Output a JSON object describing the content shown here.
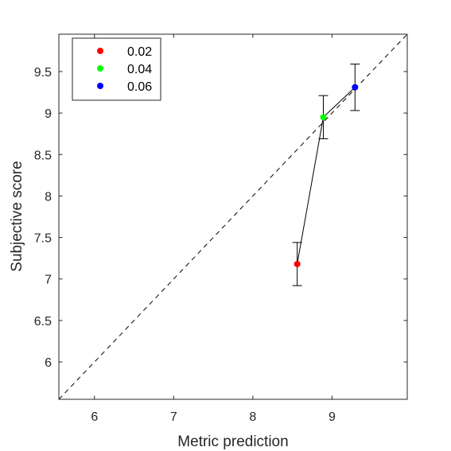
{
  "chart_data": {
    "type": "scatter",
    "xlabel": "Metric prediction",
    "ylabel": "Subjective score",
    "xlim": [
      5.55,
      9.95
    ],
    "ylim": [
      5.55,
      9.95
    ],
    "xticks": [
      "6",
      "7",
      "8",
      "9"
    ],
    "yticks": [
      "6",
      "6.5",
      "7",
      "7.5",
      "8",
      "8.5",
      "9",
      "9.5"
    ],
    "grid": false,
    "legend_position": "top-left",
    "reference_line": "identity (dashed)",
    "series": [
      {
        "name": "0.02",
        "color": "#ff0000",
        "x": 8.56,
        "y": 7.18,
        "err_low": 6.92,
        "err_high": 7.44
      },
      {
        "name": "0.04",
        "color": "#00ff00",
        "x": 8.89,
        "y": 8.95,
        "err_low": 8.69,
        "err_high": 9.21
      },
      {
        "name": "0.06",
        "color": "#0000ff",
        "x": 9.29,
        "y": 9.31,
        "err_low": 9.03,
        "err_high": 9.59
      }
    ]
  }
}
